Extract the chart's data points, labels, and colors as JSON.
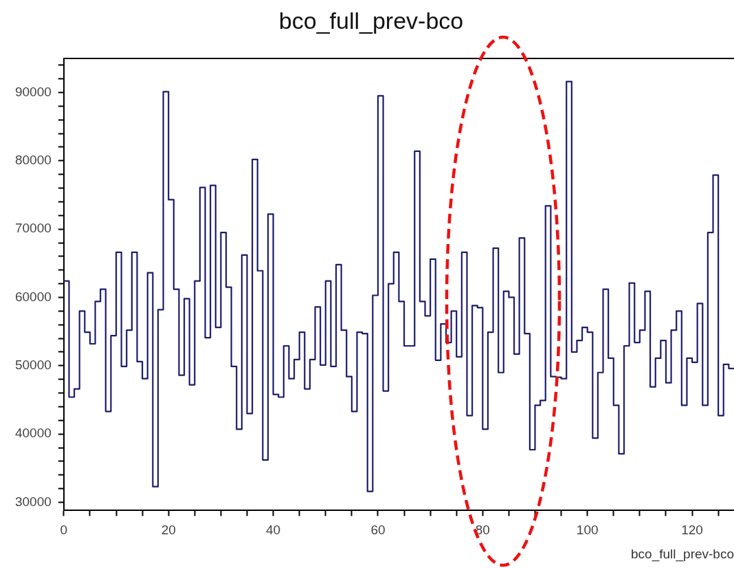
{
  "chart_data": {
    "type": "histogram",
    "title": "bco_full_prev-bco",
    "xlabel": "bco_full_prev-bco",
    "color": "#1c1c6e",
    "bins": [
      0,
      1,
      2,
      3,
      4,
      5,
      6,
      7,
      8,
      9,
      10,
      11,
      12,
      13,
      14,
      15,
      16,
      17,
      18,
      19,
      20,
      21,
      22,
      23,
      24,
      25,
      26,
      27,
      28,
      29,
      30,
      31,
      32,
      33,
      34,
      35,
      36,
      37,
      38,
      39,
      40,
      41,
      42,
      43,
      44,
      45,
      46,
      47,
      48,
      49,
      50,
      51,
      52,
      53,
      54,
      55,
      56,
      57,
      58,
      59,
      60,
      61,
      62,
      63,
      64,
      65,
      66,
      67,
      68,
      69,
      70,
      71,
      72,
      73,
      74,
      75,
      76,
      77,
      78,
      79,
      80,
      81,
      82,
      83,
      84,
      85,
      86,
      87,
      88,
      89,
      90,
      91,
      92,
      93,
      94,
      95,
      96,
      97,
      98,
      99,
      100,
      101,
      102,
      103,
      104,
      105,
      106,
      107,
      108,
      109,
      110,
      111,
      112,
      113,
      114,
      115,
      116,
      117,
      118,
      119,
      120,
      121,
      122,
      123,
      124,
      125,
      126,
      127,
      128
    ],
    "values": [
      62400,
      45400,
      46600,
      58000,
      54900,
      53200,
      59400,
      61200,
      43300,
      54400,
      66600,
      49900,
      55200,
      66600,
      50600,
      48100,
      63600,
      32300,
      58200,
      90100,
      74300,
      61200,
      48600,
      59800,
      47200,
      62400,
      76100,
      54100,
      76400,
      55600,
      69500,
      61500,
      49900,
      40700,
      66200,
      43000,
      80200,
      63900,
      36200,
      72200,
      45800,
      45400,
      52900,
      48100,
      50900,
      54900,
      46600,
      50900,
      58600,
      50100,
      62400,
      49900,
      64800,
      55200,
      48400,
      43300,
      54900,
      54700,
      31600,
      60300,
      89500,
      46300,
      62000,
      66600,
      59400,
      52900,
      52900,
      81400,
      59400,
      57300,
      65600,
      50800,
      56100,
      53400,
      58000,
      51300,
      66600,
      42700,
      58800,
      58500,
      40700,
      54900,
      67200,
      49000,
      60900,
      60000,
      51700,
      68700,
      54700,
      37700,
      44200,
      44900,
      73400,
      48400,
      48300,
      48100,
      91600,
      52000,
      53700,
      55600,
      54900,
      39400,
      49000,
      61200,
      51100,
      44200,
      37100,
      52900,
      62100,
      53400,
      55200,
      60900,
      46900,
      51100,
      53700,
      47500,
      55200,
      58000,
      44200,
      51100,
      50500,
      59100,
      44200,
      69500,
      77900,
      42700,
      50200,
      49600
    ],
    "xlim": [
      0,
      128
    ],
    "ylim": [
      28800,
      95000
    ],
    "xticks": [
      0,
      {
        "value": 5,
        "label": null
      },
      {
        "value": 10,
        "label": null
      },
      {
        "value": 15,
        "label": null
      },
      20,
      {
        "value": 25,
        "label": null
      },
      {
        "value": 30,
        "label": null
      },
      {
        "value": 35,
        "label": null
      },
      40,
      {
        "value": 45,
        "label": null
      },
      {
        "value": 50,
        "label": null
      },
      {
        "value": 55,
        "label": null
      },
      60,
      {
        "value": 65,
        "label": null
      },
      {
        "value": 70,
        "label": null
      },
      {
        "value": 75,
        "label": null
      },
      80,
      {
        "value": 85,
        "label": null
      },
      {
        "value": 90,
        "label": null
      },
      {
        "value": 95,
        "label": null
      },
      100,
      {
        "value": 105,
        "label": null
      },
      {
        "value": 110,
        "label": null
      },
      {
        "value": 115,
        "label": null
      },
      120,
      {
        "value": 125,
        "label": null
      }
    ],
    "yticks": [
      30000,
      {
        "value": 32000,
        "label": null
      },
      {
        "value": 34000,
        "label": null
      },
      {
        "value": 36000,
        "label": null
      },
      {
        "value": 38000,
        "label": null
      },
      40000,
      {
        "value": 42000,
        "label": null
      },
      {
        "value": 44000,
        "label": null
      },
      {
        "value": 46000,
        "label": null
      },
      {
        "value": 48000,
        "label": null
      },
      50000,
      {
        "value": 52000,
        "label": null
      },
      {
        "value": 54000,
        "label": null
      },
      {
        "value": 56000,
        "label": null
      },
      {
        "value": 58000,
        "label": null
      },
      60000,
      {
        "value": 62000,
        "label": null
      },
      {
        "value": 64000,
        "label": null
      },
      {
        "value": 66000,
        "label": null
      },
      {
        "value": 68000,
        "label": null
      },
      70000,
      {
        "value": 72000,
        "label": null
      },
      {
        "value": 74000,
        "label": null
      },
      {
        "value": 76000,
        "label": null
      },
      {
        "value": 78000,
        "label": null
      },
      80000,
      {
        "value": 82000,
        "label": null
      },
      {
        "value": 84000,
        "label": null
      },
      {
        "value": 86000,
        "label": null
      },
      {
        "value": 88000,
        "label": null
      },
      90000,
      {
        "value": 92000,
        "label": null
      },
      {
        "value": 94000,
        "label": null
      }
    ]
  }
}
